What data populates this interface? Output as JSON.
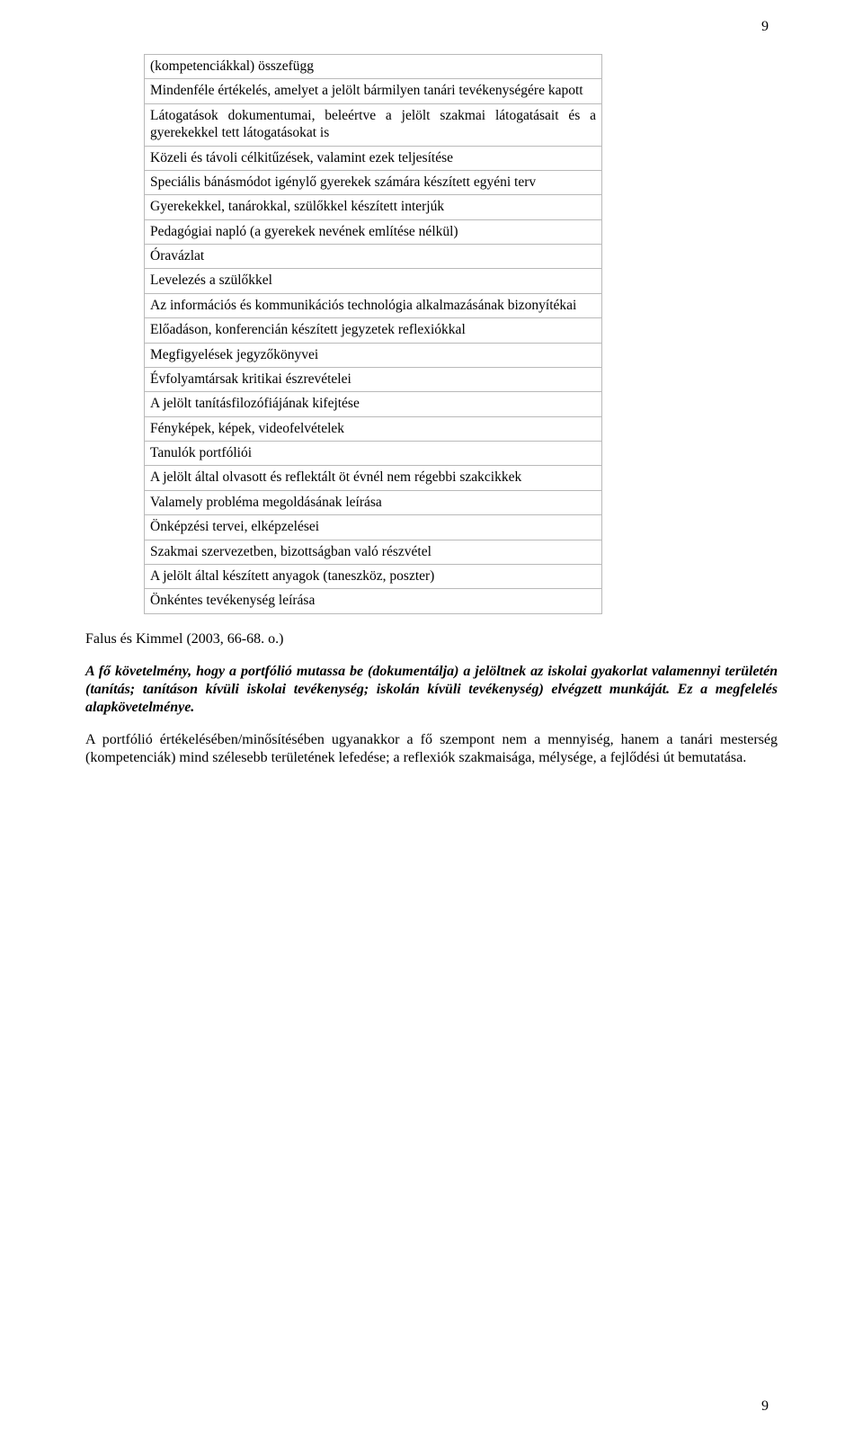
{
  "page": {
    "number_top": "9",
    "number_bottom": "9"
  },
  "table": {
    "rows": [
      "(kompetenciákkal) összefügg",
      "Mindenféle értékelés, amelyet a jelölt bármilyen tanári tevékenységére kapott",
      "Látogatások dokumentumai, beleértve a jelölt szakmai látogatásait és a gyerekekkel tett látogatásokat is",
      "Közeli és távoli célkitűzések, valamint ezek teljesítése",
      "Speciális bánásmódot igénylő gyerekek számára készített egyéni terv",
      "Gyerekekkel, tanárokkal, szülőkkel készített interjúk",
      "Pedagógiai napló (a gyerekek nevének említése nélkül)",
      "Óravázlat",
      "Levelezés a szülőkkel",
      "Az információs és kommunikációs technológia alkalmazásának bizonyítékai",
      "Előadáson, konferencián készített jegyzetek reflexiókkal",
      "Megfigyelések jegyzőkönyvei",
      "Évfolyamtársak kritikai észrevételei",
      "A jelölt tanításfilozófiájának kifejtése",
      "Fényképek, képek, videofelvételek",
      "Tanulók portfóliói",
      "A jelölt által olvasott és reflektált öt évnél nem régebbi szakcikkek",
      "Valamely probléma megoldásának leírása",
      "Önképzési tervei, elképzelései",
      "Szakmai szervezetben, bizottságban való részvétel",
      "A jelölt által készített anyagok (taneszköz, poszter)",
      "Önkéntes tevékenység leírása"
    ]
  },
  "citation": "Falus és Kimmel (2003, 66-68. o.)",
  "paragraphs": {
    "p1": "A fő követelmény, hogy a portfólió mutassa be (dokumentálja) a jelöltnek az iskolai gyakorlat valamennyi területén (tanítás; tanításon kívüli iskolai tevékenység; iskolán kívüli tevékenység) elvégzett munkáját. Ez a megfelelés alapkövetelménye.",
    "p2": "A portfólió értékelésében/minősítésében ugyanakkor a fő szempont nem a mennyiség, hanem a tanári mesterség (kompetenciák) mind szélesebb területének lefedése; a reflexiók szakmaisága, mélysége, a fejlődési út bemutatása."
  }
}
